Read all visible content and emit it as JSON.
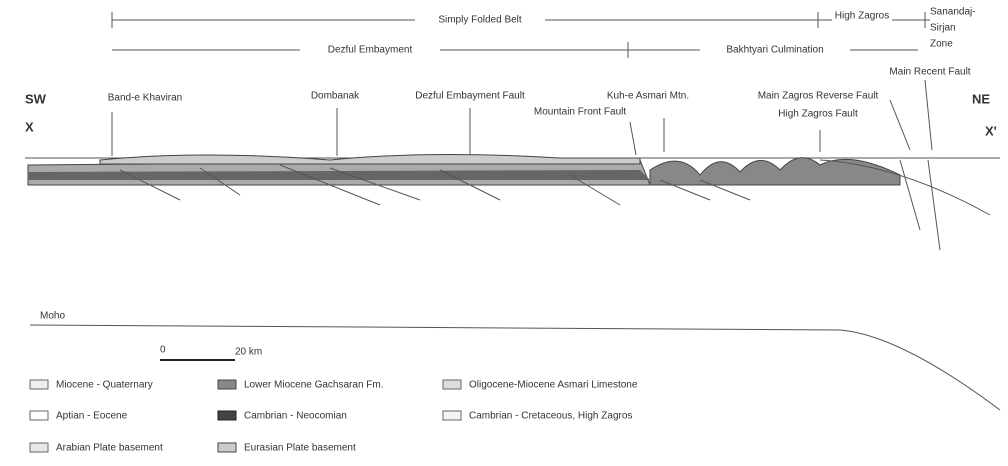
{
  "zones_top": {
    "simply_folded_belt": "Simply Folded Belt",
    "high_zagros": "High Zagros",
    "sanandaj_sirjan": [
      "Sanandaj-",
      "Sirjan",
      "Zone"
    ]
  },
  "zones_second": {
    "dezful": "Dezful Embayment",
    "bakhtyari": "Bakhtyari Culmination"
  },
  "section": {
    "sw": "SW",
    "x": "X",
    "ne": "NE",
    "x_prime": "X'",
    "labels": [
      "Band-e Khaviran",
      "Dombanak",
      "Dezful Embayment Fault",
      "Kuh-e Asmari Mtn.",
      "Mountain Front Fault",
      "Main Zagros Reverse Fault",
      "High Zagros Fault",
      "Main Recent Fault"
    ]
  },
  "moho": "Moho",
  "scale": {
    "start": "0",
    "end": "20 km"
  },
  "legend": [
    "Miocene - Quaternary",
    "Lower Miocene Gachsaran Fm.",
    "Oligocene-Miocene Asmari Limestone",
    "Aptian - Eocene",
    "Cambrian - Neocomian",
    "Cambrian - Cretaceous, High Zagros",
    "Arabian Plate basement",
    "Eurasian Plate basement"
  ]
}
